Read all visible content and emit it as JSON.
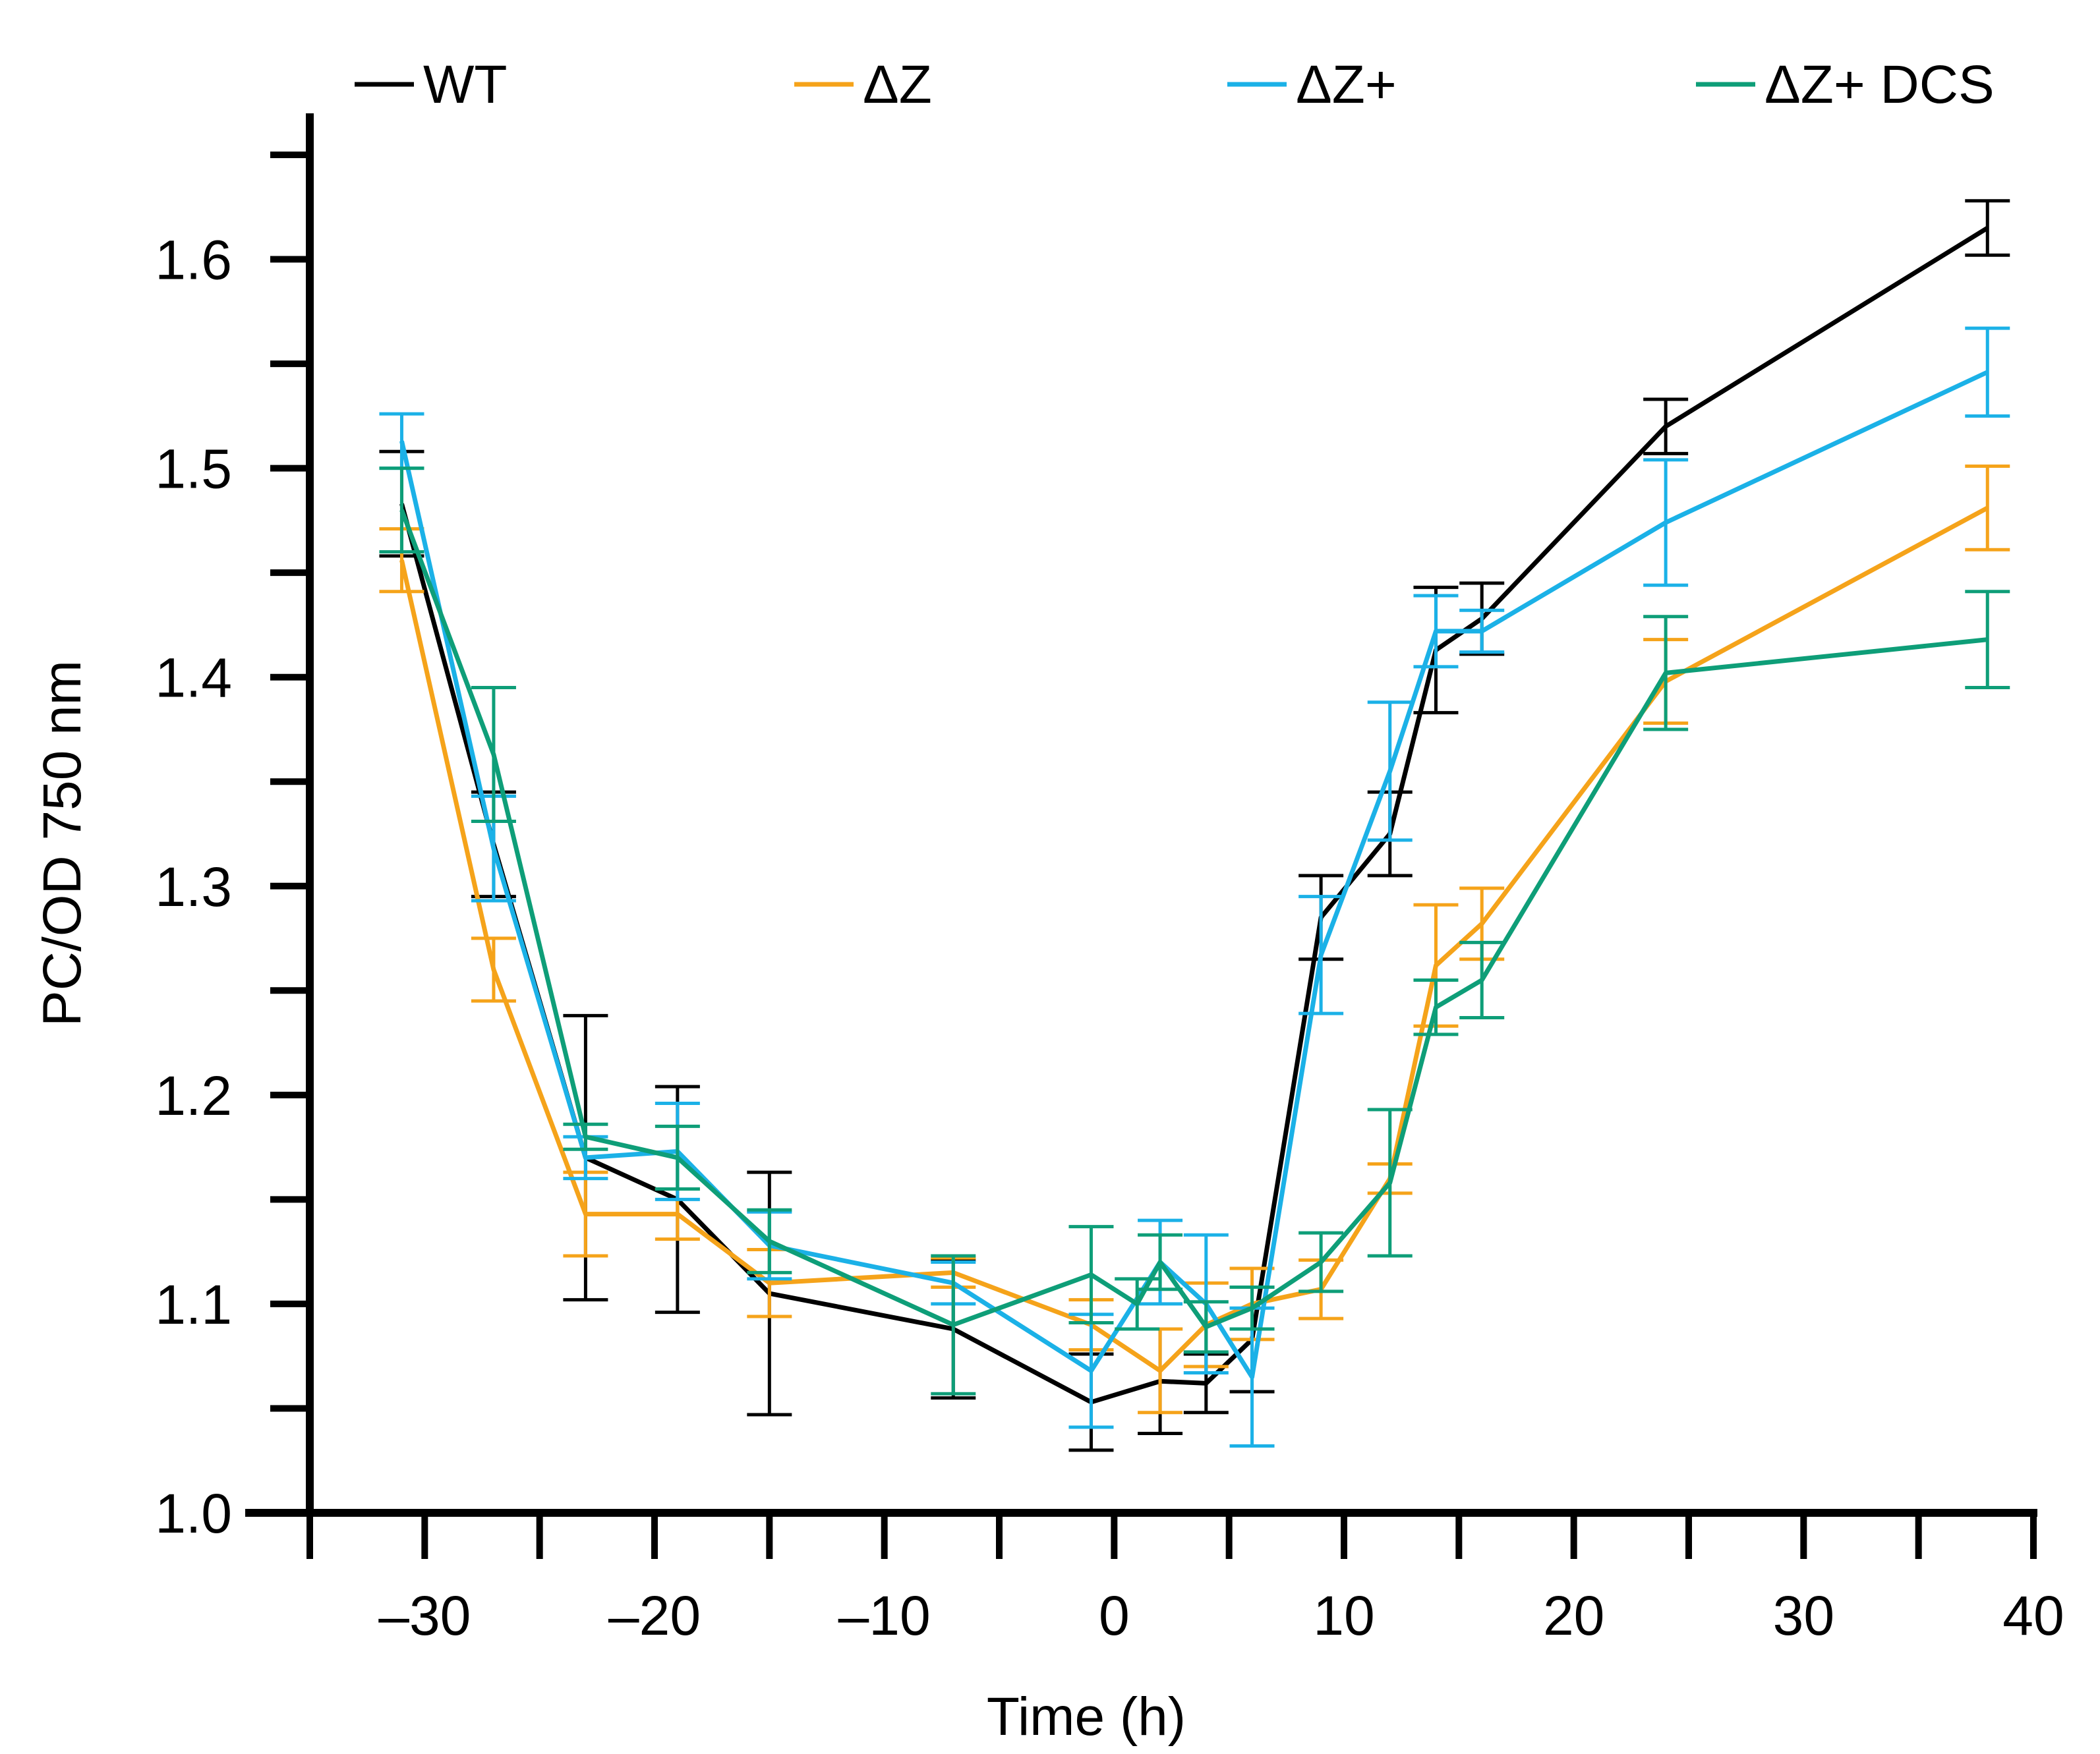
{
  "colors": {
    "wt": "#000000",
    "dz": "#F5A31A",
    "dzp": "#1BB1E7",
    "dzdcs": "#0E9E78",
    "axis": "#000000",
    "background": "#FFFFFF"
  },
  "chart_data": {
    "type": "line",
    "title": "",
    "xlabel": "Time (h)",
    "ylabel": "PC/OD 750 nm",
    "xlim": [
      -35,
      40
    ],
    "ylim": [
      1.0,
      1.65
    ],
    "grid": false,
    "legend_position": "top",
    "x_ticks": [
      -30,
      -20,
      -10,
      0,
      10,
      20,
      30,
      40
    ],
    "x_tick_labels": [
      "–30",
      "–20",
      "–10",
      "0",
      "10",
      "20",
      "30",
      "40"
    ],
    "y_ticks": [
      1.0,
      1.1,
      1.2,
      1.3,
      1.4,
      1.5,
      1.6
    ],
    "y_tick_labels": [
      "1.0",
      "1.1",
      "1.2",
      "1.3",
      "1.4",
      "1.5",
      "1.6"
    ],
    "series": [
      {
        "key": "wt",
        "name": "WT",
        "color_key": "wt",
        "x": [
          -31,
          -27,
          -23,
          -19,
          -15,
          -7,
          -1,
          2,
          4,
          6,
          9,
          12,
          14,
          16,
          24,
          38
        ],
        "values": [
          1.483,
          1.32,
          1.17,
          1.15,
          1.105,
          1.088,
          1.053,
          1.063,
          1.062,
          1.083,
          1.285,
          1.325,
          1.413,
          1.428,
          1.52,
          1.615
        ],
        "errors": [
          0.025,
          0.025,
          0.068,
          0.054,
          0.058,
          0.033,
          0.023,
          0.025,
          0.014,
          0.025,
          0.02,
          0.02,
          0.03,
          0.017,
          0.013,
          0.013
        ]
      },
      {
        "key": "dz",
        "name": "ΔZ",
        "color_key": "dz",
        "x": [
          -31,
          -27,
          -23,
          -19,
          -15,
          -7,
          -1,
          2,
          4,
          6,
          9,
          12,
          14,
          16,
          24,
          38
        ],
        "values": [
          1.456,
          1.26,
          1.143,
          1.143,
          1.11,
          1.115,
          1.09,
          1.068,
          1.09,
          1.1,
          1.107,
          1.16,
          1.262,
          1.282,
          1.398,
          1.481
        ],
        "errors": [
          0.015,
          0.015,
          0.02,
          0.012,
          0.016,
          0.007,
          0.012,
          0.02,
          0.02,
          0.017,
          0.014,
          0.007,
          0.029,
          0.017,
          0.02,
          0.02
        ]
      },
      {
        "key": "dzp",
        "name": "ΔZ+",
        "color_key": "dzp",
        "x": [
          -31,
          -27,
          -23,
          -19,
          -15,
          -7,
          -1,
          2,
          4,
          6,
          9,
          12,
          14,
          16,
          24,
          38
        ],
        "values": [
          1.513,
          1.318,
          1.17,
          1.173,
          1.128,
          1.11,
          1.068,
          1.12,
          1.1,
          1.065,
          1.267,
          1.355,
          1.422,
          1.422,
          1.474,
          1.546
        ],
        "errors": [
          0.013,
          0.025,
          0.01,
          0.023,
          0.016,
          0.01,
          0.027,
          0.02,
          0.033,
          0.033,
          0.028,
          0.033,
          0.017,
          0.01,
          0.03,
          0.021
        ]
      },
      {
        "key": "dzdcs",
        "name": "ΔZ+ DCS",
        "color_key": "dzdcs",
        "x": [
          -31,
          -27,
          -23,
          -19,
          -15,
          -7,
          -1,
          1,
          2,
          4,
          6,
          9,
          12,
          14,
          16,
          24,
          38
        ],
        "values": [
          1.48,
          1.363,
          1.18,
          1.17,
          1.13,
          1.09,
          1.114,
          1.1,
          1.12,
          1.089,
          1.098,
          1.12,
          1.158,
          1.242,
          1.255,
          1.402,
          1.418
        ],
        "errors": [
          0.02,
          0.032,
          0.006,
          0.015,
          0.015,
          0.033,
          0.023,
          0.012,
          0.013,
          0.012,
          0.01,
          0.014,
          0.035,
          0.013,
          0.018,
          0.027,
          0.023
        ]
      }
    ]
  }
}
